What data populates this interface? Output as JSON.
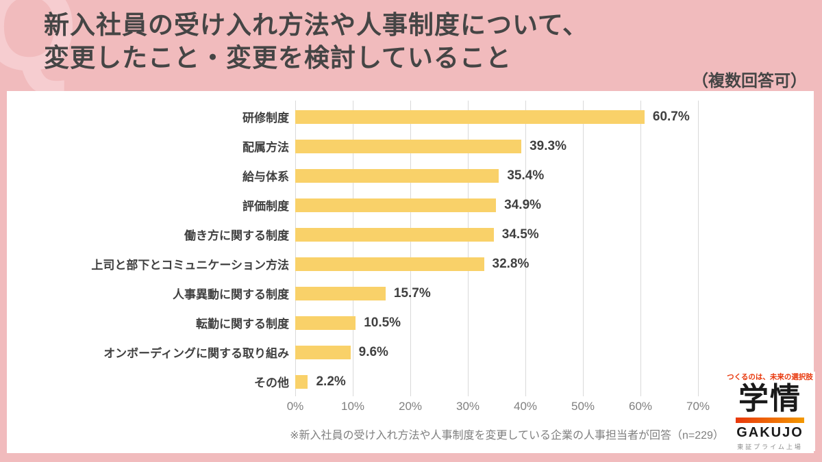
{
  "header": {
    "watermark": "Q",
    "title_line1": "新入社員の受け入れ方法や人事制度について、",
    "title_line2": "変更したこと・変更を検討していること",
    "multi_answer_note": "（複数回答可）"
  },
  "chart_data": {
    "type": "bar",
    "orientation": "horizontal",
    "categories": [
      "研修制度",
      "配属方法",
      "給与体系",
      "評価制度",
      "働き方に関する制度",
      "上司と部下とコミュニケーション方法",
      "人事異動に関する制度",
      "転勤に関する制度",
      "オンボーディングに関する取り組み",
      "その他"
    ],
    "values": [
      60.7,
      39.3,
      35.4,
      34.9,
      34.5,
      32.8,
      15.7,
      10.5,
      9.6,
      2.2
    ],
    "value_labels": [
      "60.7%",
      "39.3%",
      "35.4%",
      "34.9%",
      "34.5%",
      "32.8%",
      "15.7%",
      "10.5%",
      "9.6%",
      "2.2%"
    ],
    "x_ticks": [
      "0%",
      "10%",
      "20%",
      "30%",
      "40%",
      "50%",
      "60%",
      "70%"
    ],
    "xlim": [
      0,
      70
    ],
    "grid": true,
    "legend": "none",
    "title": "新入社員の受け入れ方法や人事制度について、変更したこと・変更を検討していること",
    "xlabel": "",
    "ylabel": ""
  },
  "footnote": "※新入社員の受け入れ方法や人事制度を変更している企業の人事担当者が回答（n=229）",
  "logo": {
    "tagline": "つくるのは、未来の選択肢",
    "name_jp": "学情",
    "name_en": "GAKUJO",
    "listing": "東証プライム上場"
  },
  "colors": {
    "background": "#F1BBBD",
    "watermark": "#F6CDD0",
    "title_text": "#454545",
    "bar": "#F9D169",
    "gridline": "#D9D9D9",
    "axis_text": "#7F7F7F",
    "label_text": "#404040",
    "logo_red": "#E8380D",
    "logo_orange": "#F39800"
  }
}
